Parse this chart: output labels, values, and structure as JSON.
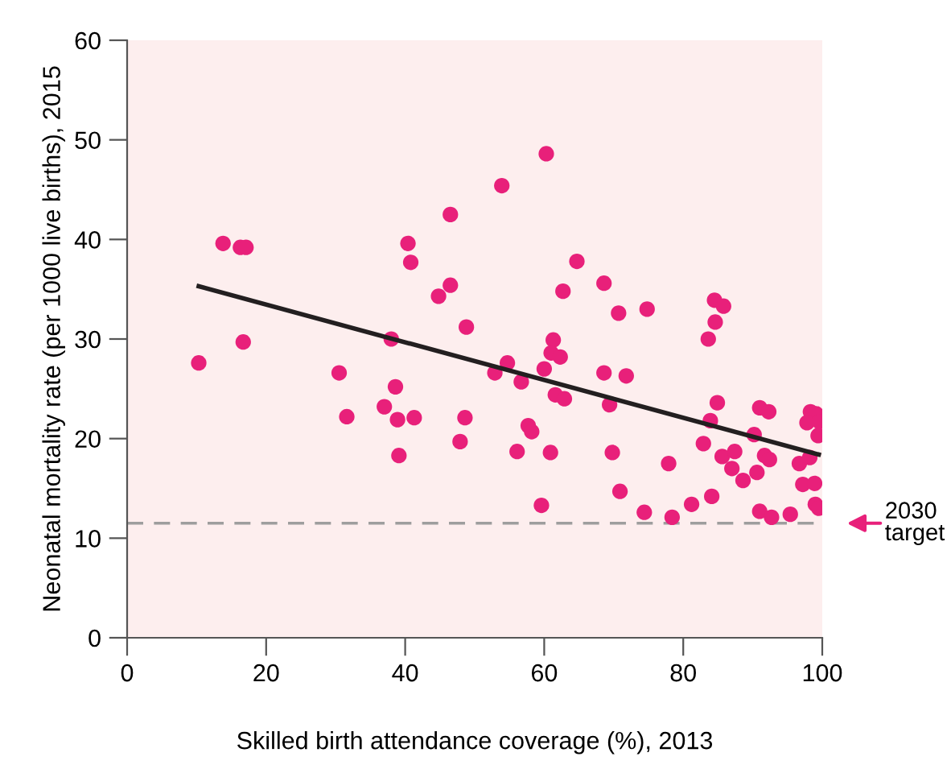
{
  "chart_data": {
    "type": "scatter",
    "xlabel": "Skilled birth attendance coverage (%), 2013",
    "ylabel": "Neonatal mortality rate (per 1000 live births), 2015",
    "xlim": [
      0,
      100
    ],
    "ylim": [
      0,
      60
    ],
    "xticks": [
      0,
      20,
      40,
      60,
      80,
      100
    ],
    "yticks": [
      0,
      10,
      20,
      30,
      40,
      50,
      60
    ],
    "grid": false,
    "series": [
      {
        "color": "#e8207a",
        "marker": "circle",
        "x": [
          10.3,
          13.8,
          16.3,
          17.1,
          16.7,
          30.5,
          31.6,
          38.0,
          38.6,
          37.0,
          38.9,
          41.3,
          39.1,
          40.4,
          40.8,
          46.5,
          46.5,
          44.8,
          48.8,
          48.6,
          47.9,
          60.3,
          53.9,
          64.7,
          62.7,
          68.6,
          70.7,
          74.8,
          61.3,
          61.0,
          62.3,
          60.0,
          54.7,
          52.9,
          56.7,
          61.6,
          62.9,
          68.6,
          71.8,
          69.4,
          57.7,
          58.2,
          56.1,
          60.9,
          69.8,
          59.6,
          70.9,
          74.4,
          77.9,
          78.4,
          81.2,
          84.1,
          82.9,
          83.6,
          84.6,
          84.5,
          85.8,
          84.9,
          83.9,
          85.6,
          87.4,
          87.0,
          88.6,
          90.6,
          90.2,
          91.0,
          92.3,
          91.7,
          92.4,
          91.0,
          92.7,
          95.4,
          96.7,
          97.2,
          98.9,
          98.2,
          98.3,
          99.1,
          97.8,
          99.6,
          99.4,
          99.0,
          99.5
        ],
        "values": [
          27.6,
          39.6,
          39.2,
          39.2,
          29.7,
          26.6,
          22.2,
          30.0,
          25.2,
          23.2,
          21.9,
          22.1,
          18.3,
          39.6,
          37.7,
          42.5,
          35.4,
          34.3,
          31.2,
          22.1,
          19.7,
          48.6,
          45.4,
          37.8,
          34.8,
          35.6,
          32.6,
          33.0,
          29.9,
          28.6,
          28.2,
          27.0,
          27.6,
          26.6,
          25.7,
          24.4,
          24.0,
          26.6,
          26.3,
          23.4,
          21.3,
          20.7,
          18.7,
          18.6,
          18.6,
          13.3,
          14.7,
          12.6,
          17.5,
          12.1,
          13.4,
          14.2,
          19.5,
          30.0,
          31.7,
          33.9,
          33.3,
          23.6,
          21.8,
          18.2,
          18.7,
          17.0,
          15.8,
          16.6,
          20.4,
          23.1,
          22.7,
          18.3,
          17.9,
          12.7,
          12.1,
          12.4,
          17.5,
          15.4,
          15.5,
          18.1,
          22.7,
          22.5,
          21.6,
          21.7,
          20.3,
          13.4,
          13.0
        ]
      },
      {
        "type": "line",
        "color": "#231f20",
        "x": [
          10.3,
          99.5
        ],
        "values": [
          35.3,
          18.4
        ]
      }
    ],
    "ref_lines": [
      {
        "axis": "y",
        "value": 11.5,
        "label": "2030\ntarget",
        "color": "#9e9e9e",
        "line_style": "dashed"
      }
    ]
  }
}
